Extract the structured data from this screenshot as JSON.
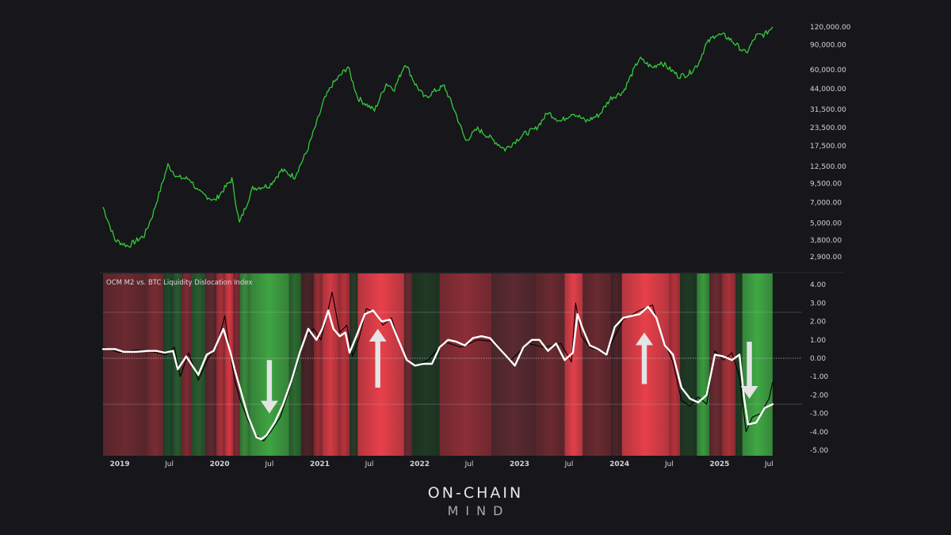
{
  "chart_data": [
    {
      "type": "line",
      "scale": "log",
      "series": [
        {
          "color": "#35c93a",
          "x": [
            "2018-11-01",
            "2018-12-15",
            "2019-02-01",
            "2019-04-01",
            "2019-05-01",
            "2019-06-26",
            "2019-08-01",
            "2019-09-15",
            "2019-10-15",
            "2019-12-15",
            "2020-01-15",
            "2020-02-15",
            "2020-03-13",
            "2020-05-01",
            "2020-07-01",
            "2020-08-15",
            "2020-10-01",
            "2020-11-15",
            "2020-12-31",
            "2021-01-15",
            "2021-02-15",
            "2021-04-14",
            "2021-05-20",
            "2021-07-20",
            "2021-09-01",
            "2021-10-01",
            "2021-11-10",
            "2021-12-15",
            "2022-01-20",
            "2022-03-01",
            "2022-04-01",
            "2022-05-12",
            "2022-06-18",
            "2022-08-01",
            "2022-09-15",
            "2022-11-09",
            "2023-01-15",
            "2023-03-01",
            "2023-04-15",
            "2023-06-01",
            "2023-07-15",
            "2023-09-01",
            "2023-10-20",
            "2023-12-01",
            "2024-01-15",
            "2024-03-14",
            "2024-05-01",
            "2024-06-01",
            "2024-08-05",
            "2024-09-10",
            "2024-10-15",
            "2024-11-12",
            "2024-12-17",
            "2025-01-20",
            "2025-02-15",
            "2025-04-08",
            "2025-05-15",
            "2025-06-15",
            "2025-07-14"
          ],
          "values": [
            6500,
            3800,
            3450,
            4100,
            5700,
            12800,
            10500,
            10200,
            8300,
            7200,
            8600,
            10200,
            5000,
            8800,
            9200,
            11800,
            10600,
            16000,
            29000,
            36000,
            47000,
            63000,
            38000,
            31000,
            48000,
            44000,
            67000,
            48000,
            38000,
            43000,
            46000,
            30000,
            19000,
            23000,
            20000,
            16500,
            21000,
            23000,
            30000,
            26000,
            30000,
            26000,
            29000,
            38000,
            42000,
            72000,
            62000,
            68000,
            54000,
            56000,
            66000,
            90000,
            106000,
            104000,
            96000,
            78000,
            104000,
            106000,
            120000
          ]
        }
      ],
      "yticks": [
        "120,000.00",
        "90,000.00",
        "60,000.00",
        "44,000.00",
        "31,500.00",
        "23,500.00",
        "17,500.00",
        "12,500.00",
        "9,500.00",
        "7,000.00",
        "5,000.00",
        "3,800.00",
        "2,900.00"
      ]
    },
    {
      "type": "line",
      "title": "OCM M2 vs. BTC Liquidity Dislocation Index",
      "x_tick_labels": [
        "2019",
        "Jul",
        "2020",
        "Jul",
        "2021",
        "Jul",
        "2022",
        "Jul",
        "2023",
        "Jul",
        "2024",
        "Jul",
        "2025",
        "Jul"
      ],
      "yticks": [
        "4.00",
        "3.00",
        "2.00",
        "1.00",
        "0.00",
        "-1.00",
        "-2.00",
        "-3.00",
        "-4.00",
        "-5.00"
      ],
      "ylim": [
        -5,
        4.7
      ],
      "series": [
        {
          "color": "#ffffff",
          "x": [
            "2018-11-01",
            "2018-12-15",
            "2019-01-15",
            "2019-03-01",
            "2019-04-15",
            "2019-05-15",
            "2019-06-15",
            "2019-07-15",
            "2019-08-01",
            "2019-09-01",
            "2019-10-15",
            "2019-11-15",
            "2019-12-10",
            "2020-01-15",
            "2020-02-10",
            "2020-02-25",
            "2020-03-15",
            "2020-04-15",
            "2020-05-15",
            "2020-06-01",
            "2020-06-20",
            "2020-07-20",
            "2020-08-20",
            "2020-09-20",
            "2020-10-20",
            "2020-11-20",
            "2020-12-20",
            "2021-01-10",
            "2021-02-01",
            "2021-02-20",
            "2021-03-15",
            "2021-04-05",
            "2021-04-20",
            "2021-05-20",
            "2021-06-15",
            "2021-07-15",
            "2021-08-15",
            "2021-09-15",
            "2021-10-15",
            "2021-11-15",
            "2021-12-15",
            "2022-01-15",
            "2022-02-15",
            "2022-03-15",
            "2022-04-15",
            "2022-05-15",
            "2022-06-15",
            "2022-07-15",
            "2022-08-15",
            "2022-09-15",
            "2022-10-15",
            "2022-11-15",
            "2022-12-15",
            "2023-01-15",
            "2023-02-15",
            "2023-03-15",
            "2023-04-15",
            "2023-05-15",
            "2023-06-15",
            "2023-07-15",
            "2023-08-01",
            "2023-08-20",
            "2023-09-15",
            "2023-10-15",
            "2023-11-15",
            "2023-12-15",
            "2024-01-15",
            "2024-02-15",
            "2024-03-15",
            "2024-04-15",
            "2024-05-15",
            "2024-06-15",
            "2024-07-15",
            "2024-08-15",
            "2024-09-15",
            "2024-10-15",
            "2024-11-15",
            "2024-12-15",
            "2025-01-15",
            "2025-02-15",
            "2025-03-15",
            "2025-04-01",
            "2025-04-15",
            "2025-05-15",
            "2025-06-15",
            "2025-07-14"
          ],
          "values": [
            0.5,
            0.5,
            0.35,
            0.35,
            0.4,
            0.4,
            0.3,
            0.4,
            -0.6,
            0.1,
            -0.9,
            0.2,
            0.4,
            1.6,
            0.3,
            -0.6,
            -1.6,
            -3.2,
            -4.3,
            -4.4,
            -4.2,
            -3.5,
            -2.5,
            -1.2,
            0.3,
            1.6,
            1.0,
            1.6,
            2.6,
            1.6,
            1.2,
            1.4,
            0.3,
            1.4,
            2.4,
            2.6,
            2.0,
            2.1,
            1.0,
            -0.1,
            -0.4,
            -0.3,
            -0.3,
            0.6,
            1.0,
            0.9,
            0.7,
            1.1,
            1.2,
            1.1,
            0.6,
            0.1,
            -0.4,
            0.6,
            1.0,
            1.0,
            0.4,
            0.8,
            -0.1,
            0.3,
            2.4,
            1.6,
            0.7,
            0.5,
            0.2,
            1.7,
            2.2,
            2.3,
            2.4,
            2.8,
            2.2,
            0.7,
            0.2,
            -1.6,
            -2.2,
            -2.4,
            -2.0,
            0.2,
            0.1,
            -0.1,
            0.2,
            -2.2,
            -3.6,
            -3.5,
            -2.7,
            -2.5
          ]
        },
        {
          "color": "#000000",
          "x": [
            "2018-11-01",
            "2019-01-01",
            "2019-03-01",
            "2019-05-01",
            "2019-06-20",
            "2019-07-20",
            "2019-08-10",
            "2019-09-10",
            "2019-10-15",
            "2019-11-20",
            "2019-12-20",
            "2020-01-20",
            "2020-02-05",
            "2020-02-25",
            "2020-03-15",
            "2020-04-15",
            "2020-05-15",
            "2020-06-10",
            "2020-07-10",
            "2020-08-10",
            "2020-09-10",
            "2020-10-10",
            "2020-11-10",
            "2020-12-10",
            "2021-01-05",
            "2021-01-25",
            "2021-02-15",
            "2021-03-15",
            "2021-04-10",
            "2021-05-01",
            "2021-05-25",
            "2021-06-20",
            "2021-07-20",
            "2021-08-20",
            "2021-09-20",
            "2021-10-20",
            "2021-11-20",
            "2021-12-20",
            "2022-02-01",
            "2022-04-01",
            "2022-06-01",
            "2022-08-01",
            "2022-10-01",
            "2022-12-01",
            "2023-02-01",
            "2023-04-01",
            "2023-06-01",
            "2023-07-10",
            "2023-07-25",
            "2023-08-15",
            "2023-09-15",
            "2023-11-15",
            "2024-01-15",
            "2024-03-15",
            "2024-05-01",
            "2024-06-01",
            "2024-07-15",
            "2024-08-15",
            "2024-09-15",
            "2024-10-15",
            "2024-11-15",
            "2024-12-15",
            "2025-01-15",
            "2025-02-15",
            "2025-03-15",
            "2025-04-08",
            "2025-05-01",
            "2025-06-01",
            "2025-07-01",
            "2025-07-14"
          ],
          "values": [
            0.6,
            0.3,
            0.45,
            0.35,
            0.2,
            0.6,
            -1.0,
            0.3,
            -1.2,
            0.0,
            0.6,
            2.3,
            0.6,
            -1.2,
            -2.2,
            -3.4,
            -4.2,
            -4.5,
            -3.9,
            -3.2,
            -1.8,
            -0.4,
            1.2,
            1.6,
            1.0,
            2.2,
            3.6,
            1.4,
            1.8,
            0.1,
            1.1,
            2.7,
            2.5,
            1.8,
            2.2,
            0.8,
            -0.2,
            -0.4,
            -0.1,
            0.9,
            0.6,
            1.0,
            0.9,
            -0.1,
            0.8,
            0.6,
            0.8,
            -0.2,
            3.0,
            1.2,
            0.6,
            0.3,
            2.1,
            2.6,
            2.9,
            1.3,
            -0.2,
            -2.3,
            -2.6,
            -2.1,
            -2.5,
            0.4,
            -0.1,
            0.3,
            -1.0,
            -4.0,
            -3.2,
            -3.0,
            -2.2,
            -1.3
          ]
        }
      ],
      "background_bands": [
        {
          "from": "2018-11-01",
          "to": "2019-04-10",
          "color": "#6a2a30"
        },
        {
          "from": "2019-04-10",
          "to": "2019-06-10",
          "color": "#7a2c33"
        },
        {
          "from": "2019-06-10",
          "to": "2019-07-15",
          "color": "#1f4a2a"
        },
        {
          "from": "2019-07-15",
          "to": "2019-08-15",
          "color": "#2a5a2e"
        },
        {
          "from": "2019-08-15",
          "to": "2019-09-20",
          "color": "#7d2a33"
        },
        {
          "from": "2019-09-20",
          "to": "2019-11-10",
          "color": "#2a5a2e"
        },
        {
          "from": "2019-11-10",
          "to": "2019-12-20",
          "color": "#5e2a30"
        },
        {
          "from": "2019-12-20",
          "to": "2020-01-20",
          "color": "#a83038"
        },
        {
          "from": "2020-01-20",
          "to": "2020-02-20",
          "color": "#d83842"
        },
        {
          "from": "2020-02-20",
          "to": "2020-03-15",
          "color": "#7d2a33"
        },
        {
          "from": "2020-03-15",
          "to": "2020-04-20",
          "color": "#3a8a3a"
        },
        {
          "from": "2020-04-20",
          "to": "2020-09-10",
          "color": "#3fa442"
        },
        {
          "from": "2020-09-10",
          "to": "2020-10-25",
          "color": "#2c6a30"
        },
        {
          "from": "2020-10-25",
          "to": "2020-12-10",
          "color": "#4a2428"
        },
        {
          "from": "2020-12-10",
          "to": "2021-01-10",
          "color": "#9a2e36"
        },
        {
          "from": "2021-01-10",
          "to": "2021-03-10",
          "color": "#d43a44"
        },
        {
          "from": "2021-03-10",
          "to": "2021-04-20",
          "color": "#b8323b"
        },
        {
          "from": "2021-04-20",
          "to": "2021-05-20",
          "color": "#2a3a28"
        },
        {
          "from": "2021-05-20",
          "to": "2021-11-05",
          "color": "#e8404a"
        },
        {
          "from": "2021-11-05",
          "to": "2021-12-05",
          "color": "#6a2a30"
        },
        {
          "from": "2021-12-05",
          "to": "2022-03-15",
          "color": "#1f3a24"
        },
        {
          "from": "2022-03-15",
          "to": "2022-09-20",
          "color": "#8c2e36"
        },
        {
          "from": "2022-09-20",
          "to": "2023-03-01",
          "color": "#5a2a30"
        },
        {
          "from": "2023-03-01",
          "to": "2023-06-15",
          "color": "#6a2a30"
        },
        {
          "from": "2023-06-15",
          "to": "2023-08-20",
          "color": "#e0404a"
        },
        {
          "from": "2023-08-20",
          "to": "2023-12-01",
          "color": "#6a2a30"
        },
        {
          "from": "2023-12-01",
          "to": "2024-01-10",
          "color": "#4a2428"
        },
        {
          "from": "2024-01-10",
          "to": "2024-07-01",
          "color": "#e8404a"
        },
        {
          "from": "2024-07-01",
          "to": "2024-08-10",
          "color": "#b8323b"
        },
        {
          "from": "2024-08-10",
          "to": "2024-10-10",
          "color": "#1f3a24"
        },
        {
          "from": "2024-10-10",
          "to": "2024-11-25",
          "color": "#3a9a3e"
        },
        {
          "from": "2024-11-25",
          "to": "2025-01-10",
          "color": "#6a2a30"
        },
        {
          "from": "2025-01-10",
          "to": "2025-03-01",
          "color": "#a8323a"
        },
        {
          "from": "2025-03-01",
          "to": "2025-03-25",
          "color": "#1f3a24"
        },
        {
          "from": "2025-03-25",
          "to": "2025-07-14",
          "color": "#40a844"
        }
      ],
      "arrows": [
        {
          "date": "2020-07-01",
          "from": -0.1,
          "to": -3.0,
          "direction": "down"
        },
        {
          "date": "2021-08-01",
          "from": -1.6,
          "to": 1.6,
          "direction": "up"
        },
        {
          "date": "2024-04-01",
          "from": -1.4,
          "to": 1.4,
          "direction": "up"
        },
        {
          "date": "2025-04-20",
          "from": 0.9,
          "to": -2.2,
          "direction": "down"
        }
      ]
    }
  ],
  "brand": {
    "line1": "ON-CHAIN",
    "line2": "MIND"
  }
}
